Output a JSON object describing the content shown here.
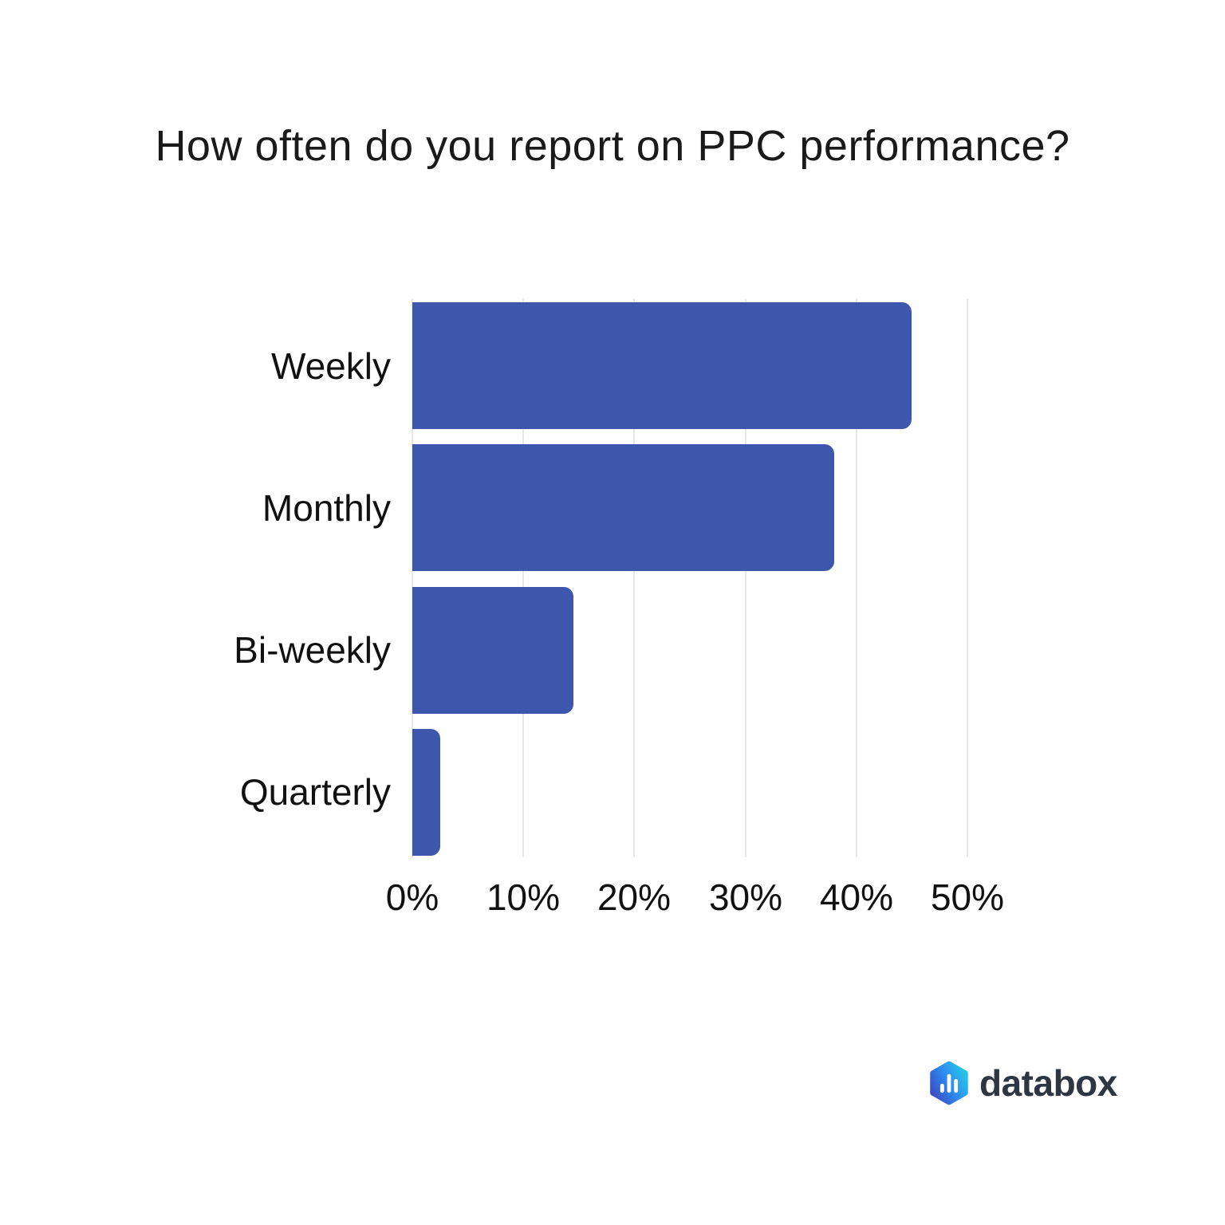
{
  "title": "How often do you report on PPC performance?",
  "chart_data": {
    "type": "bar",
    "orientation": "horizontal",
    "title": "How often do you report on PPC performance?",
    "categories": [
      "Weekly",
      "Monthly",
      "Bi-weekly",
      "Quarterly"
    ],
    "values": [
      45,
      38,
      14.5,
      2.5
    ],
    "unit": "%",
    "xlabel": "",
    "ylabel": "",
    "xlim": [
      0,
      50
    ],
    "x_ticks": [
      "0%",
      "10%",
      "20%",
      "30%",
      "40%",
      "50%"
    ],
    "grid": true,
    "legend": "none",
    "bar_color": "#3d57ac",
    "gridline_color": "#e7e7e7",
    "text_color": "#111111"
  },
  "branding": {
    "logo_text": "databox",
    "logo_icon": "databox-hexagon-bar-chart-icon",
    "logo_colors": {
      "gradient_indigo": "#3b49be",
      "gradient_blue": "#2e86ee",
      "gradient_cyan": "#27c4ea",
      "wordmark_text": "#2e3642"
    }
  }
}
